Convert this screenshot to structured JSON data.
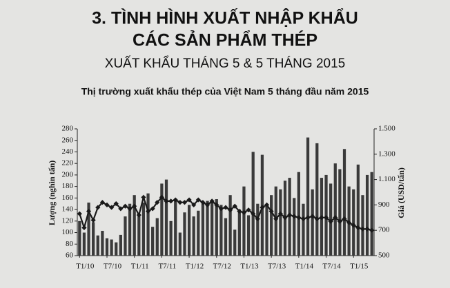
{
  "header": {
    "line1": "3. TÌNH HÌNH XUẤT NHẬP KHẨU",
    "line2": "CÁC SẢN PHẨM THÉP",
    "line3": "XUẤT KHẨU THÁNG 5 & 5 THÁNG 2015"
  },
  "chart_data": {
    "type": "bar-line",
    "title": "Thị trường xuất khẩu thép của Việt Nam 5 tháng đầu năm 2015",
    "y_label": "Lượng (nghìn tấn)",
    "y2_label": "Giá (USD/tấn)",
    "categories": [
      "T1/10",
      null,
      null,
      null,
      null,
      null,
      "T7/10",
      null,
      null,
      null,
      null,
      null,
      "T1/11",
      null,
      null,
      null,
      null,
      null,
      "T7/11",
      null,
      null,
      null,
      null,
      null,
      "T1/12",
      null,
      null,
      null,
      null,
      null,
      "T7/12",
      null,
      null,
      null,
      null,
      null,
      "T1/13",
      null,
      null,
      null,
      null,
      null,
      "T7/13",
      null,
      null,
      null,
      null,
      null,
      "T1/14",
      null,
      null,
      null,
      null,
      null,
      "T7/14",
      null,
      null,
      null,
      null,
      null,
      "T1/15",
      null,
      null,
      null,
      null
    ],
    "series": [
      {
        "type": "bar",
        "axis": "y",
        "color": "#3a3a3a",
        "values": [
          120,
          100,
          152,
          118,
          95,
          103,
          90,
          88,
          83,
          96,
          128,
          150,
          165,
          128,
          152,
          168,
          110,
          125,
          185,
          192,
          120,
          158,
          100,
          135,
          148,
          128,
          138,
          150,
          155,
          152,
          158,
          148,
          125,
          165,
          105,
          140,
          180,
          130,
          240,
          150,
          235,
          145,
          165,
          180,
          175,
          190,
          195,
          160,
          205,
          150,
          265,
          175,
          255,
          195,
          200,
          185,
          220,
          210,
          245,
          180,
          175,
          218,
          165,
          200,
          205
        ]
      },
      {
        "type": "line",
        "axis": "y2",
        "color": "#1a1a1a",
        "values": [
          830,
          720,
          850,
          780,
          880,
          920,
          900,
          880,
          910,
          870,
          890,
          870,
          890,
          820,
          960,
          850,
          870,
          920,
          960,
          930,
          930,
          940,
          920,
          920,
          940,
          900,
          940,
          920,
          900,
          930,
          900,
          870,
          880,
          860,
          890,
          850,
          840,
          860,
          830,
          790,
          880,
          900,
          850,
          790,
          830,
          800,
          820,
          810,
          800,
          790,
          800,
          810,
          790,
          800,
          800,
          770,
          800,
          770,
          790,
          760,
          740,
          720,
          710,
          710,
          700
        ]
      }
    ],
    "ylim": [
      60,
      280
    ],
    "yticks": [
      60,
      80,
      100,
      120,
      140,
      160,
      180,
      200,
      220,
      240,
      260,
      280
    ],
    "y2lim": [
      500,
      1500
    ],
    "y2ticks": [
      500,
      700,
      900,
      {
        "value": 1100,
        "label": "1.100"
      },
      {
        "value": 1300,
        "label": "1.300"
      },
      {
        "value": 1500,
        "label": "1.500"
      }
    ]
  }
}
